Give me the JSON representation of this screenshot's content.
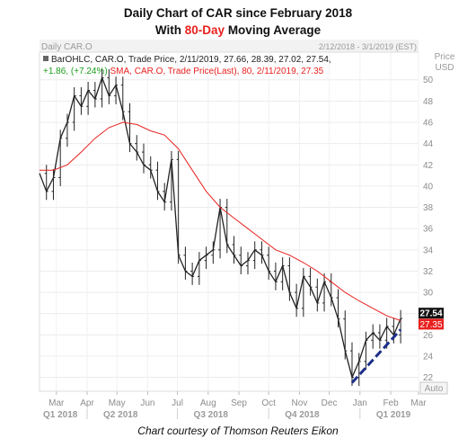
{
  "header": {
    "title_line1": "Daily Chart of CAR since February 2018",
    "title_line2_prefix": "With ",
    "title_line2_accent": "80-Day",
    "title_line2_suffix": " Moving Average",
    "accent_color": "#e8211f"
  },
  "caption": "Chart courtesy of Thomson Reuters Eikon",
  "chart_data": {
    "type": "line",
    "panel_title": "Daily CAR.O",
    "date_range_label": "2/12/2018 - 3/1/2019 (EST)",
    "price_axis_label": "Price",
    "currency_label": "USD",
    "auto_label": "Auto",
    "legend": [
      {
        "text": "BarOHLC, CAR.O, Trade Price, 2/11/2019, 27.66, 28.39, 27.02, 27.54,",
        "color": "#222222"
      },
      {
        "change": "+1.86, (+7.24%)",
        "change_color": "#1a9c1a",
        "text": "SMA, CAR.O, Trade Price(Last),  80, 2/11/2019, 27.35",
        "color": "#e8211f"
      }
    ],
    "y_ticks": [
      22,
      24,
      26,
      28,
      30,
      32,
      34,
      36,
      38,
      40,
      42,
      44,
      46,
      48,
      50
    ],
    "ylim": [
      20.7,
      52.6
    ],
    "month_ticks": [
      "Mar",
      "Apr",
      "May",
      "Jun",
      "Jul",
      "Aug",
      "Sep",
      "Oct",
      "Nov",
      "Dec",
      "Jan",
      "Feb",
      "Mar"
    ],
    "quarter_ticks": [
      "Q1 2018",
      "Q2 2018",
      "Q3 2018",
      "Q4 2018",
      "Q1 2019"
    ],
    "last_price_label": "27.54",
    "last_price_color": "#111111",
    "sma_label": "27.35",
    "sma_label_color": "#e8211f",
    "price_series": [
      [
        "2018-02-12",
        41.2
      ],
      [
        "2018-02-19",
        39.5
      ],
      [
        "2018-02-26",
        40.8
      ],
      [
        "2018-03-05",
        44.5
      ],
      [
        "2018-03-12",
        46.0
      ],
      [
        "2018-03-19",
        48.5
      ],
      [
        "2018-03-26",
        47.5
      ],
      [
        "2018-04-02",
        49.0
      ],
      [
        "2018-04-09",
        48.2
      ],
      [
        "2018-04-16",
        50.2
      ],
      [
        "2018-04-23",
        48.5
      ],
      [
        "2018-04-30",
        49.5
      ],
      [
        "2018-05-07",
        47.0
      ],
      [
        "2018-05-14",
        44.0
      ],
      [
        "2018-05-21",
        43.2
      ],
      [
        "2018-05-28",
        42.0
      ],
      [
        "2018-06-04",
        41.5
      ],
      [
        "2018-06-11",
        39.5
      ],
      [
        "2018-06-18",
        38.5
      ],
      [
        "2018-06-25",
        42.5
      ],
      [
        "2018-07-02",
        33.5
      ],
      [
        "2018-07-09",
        32.0
      ],
      [
        "2018-07-16",
        31.5
      ],
      [
        "2018-07-23",
        33.0
      ],
      [
        "2018-07-30",
        33.5
      ],
      [
        "2018-08-06",
        34.0
      ],
      [
        "2018-08-13",
        38.0
      ],
      [
        "2018-08-20",
        34.5
      ],
      [
        "2018-08-27",
        33.5
      ],
      [
        "2018-09-03",
        32.5
      ],
      [
        "2018-09-10",
        33.0
      ],
      [
        "2018-09-17",
        34.0
      ],
      [
        "2018-09-24",
        33.5
      ],
      [
        "2018-10-01",
        32.0
      ],
      [
        "2018-10-08",
        31.0
      ],
      [
        "2018-10-15",
        32.5
      ],
      [
        "2018-10-22",
        30.0
      ],
      [
        "2018-10-29",
        28.5
      ],
      [
        "2018-11-05",
        31.5
      ],
      [
        "2018-11-12",
        30.5
      ],
      [
        "2018-11-19",
        29.0
      ],
      [
        "2018-11-26",
        31.0
      ],
      [
        "2018-12-03",
        29.5
      ],
      [
        "2018-12-10",
        27.5
      ],
      [
        "2018-12-17",
        24.5
      ],
      [
        "2018-12-24",
        22.0
      ],
      [
        "2018-12-31",
        23.5
      ],
      [
        "2019-01-07",
        25.5
      ],
      [
        "2019-01-14",
        26.2
      ],
      [
        "2019-01-21",
        25.5
      ],
      [
        "2019-01-28",
        26.8
      ],
      [
        "2019-02-04",
        26.0
      ],
      [
        "2019-02-11",
        27.54
      ]
    ],
    "sma_series": [
      [
        "2018-02-12",
        41.5
      ],
      [
        "2018-02-26",
        41.5
      ],
      [
        "2018-03-12",
        42.0
      ],
      [
        "2018-03-26",
        43.2
      ],
      [
        "2018-04-09",
        44.5
      ],
      [
        "2018-04-23",
        45.5
      ],
      [
        "2018-05-07",
        46.0
      ],
      [
        "2018-05-21",
        45.8
      ],
      [
        "2018-06-04",
        45.2
      ],
      [
        "2018-06-18",
        44.8
      ],
      [
        "2018-07-02",
        43.5
      ],
      [
        "2018-07-16",
        41.5
      ],
      [
        "2018-07-30",
        39.5
      ],
      [
        "2018-08-13",
        38.0
      ],
      [
        "2018-08-27",
        37.0
      ],
      [
        "2018-09-10",
        36.0
      ],
      [
        "2018-09-24",
        35.0
      ],
      [
        "2018-10-08",
        34.0
      ],
      [
        "2018-10-22",
        33.5
      ],
      [
        "2018-11-05",
        32.8
      ],
      [
        "2018-11-19",
        32.0
      ],
      [
        "2018-12-03",
        31.0
      ],
      [
        "2018-12-17",
        30.0
      ],
      [
        "2018-12-31",
        29.2
      ],
      [
        "2019-01-14",
        28.5
      ],
      [
        "2019-01-28",
        27.8
      ],
      [
        "2019-02-11",
        27.35
      ]
    ],
    "trendline": {
      "start": [
        "2018-12-24",
        21.5
      ],
      "end": [
        "2019-02-11",
        26.5
      ],
      "color": "#1c2f8a"
    }
  }
}
